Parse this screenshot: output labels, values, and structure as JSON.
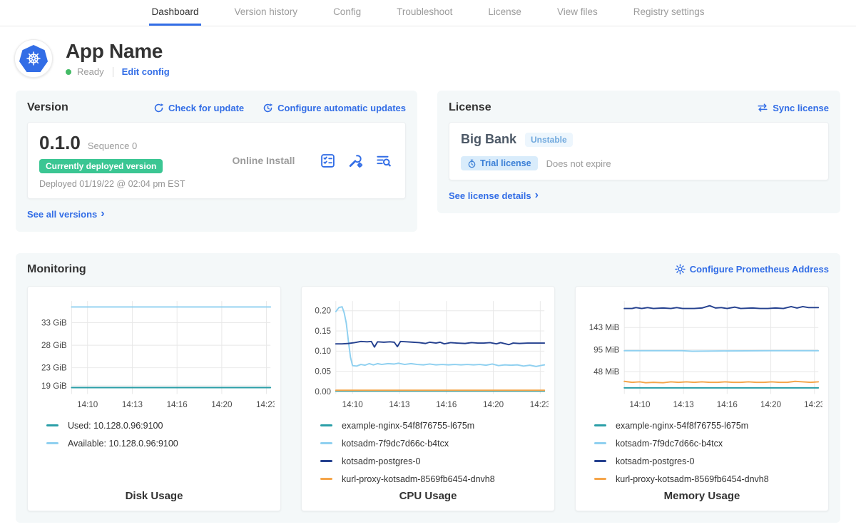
{
  "nav": {
    "tabs": [
      {
        "label": "Dashboard",
        "active": true
      },
      {
        "label": "Version history",
        "active": false
      },
      {
        "label": "Config",
        "active": false
      },
      {
        "label": "Troubleshoot",
        "active": false
      },
      {
        "label": "License",
        "active": false
      },
      {
        "label": "View files",
        "active": false
      },
      {
        "label": "Registry settings",
        "active": false
      }
    ]
  },
  "header": {
    "app_name": "App Name",
    "status": "Ready",
    "edit_config": "Edit config"
  },
  "version_card": {
    "title": "Version",
    "check_update": "Check for update",
    "configure_updates": "Configure automatic updates",
    "version": "0.1.0",
    "sequence": "Sequence 0",
    "deployed_badge": "Currently deployed version",
    "deployed_at": "Deployed 01/19/22 @ 02:04 pm EST",
    "install_type": "Online Install",
    "see_all": "See all versions"
  },
  "license_card": {
    "title": "License",
    "sync": "Sync license",
    "name": "Big Bank",
    "channel": "Unstable",
    "trial": "Trial license",
    "expiry": "Does not expire",
    "see_details": "See license details"
  },
  "monitoring": {
    "title": "Monitoring",
    "configure": "Configure Prometheus Address"
  },
  "icons": {
    "chevron": "›"
  },
  "colors": {
    "accent_blue": "#326de6",
    "deployed_badge_green": "#3bc693",
    "status_ready_green": "#44bb66",
    "series_teal": "#2b9fa8",
    "series_light_blue": "#8fd0f0",
    "series_navy": "#25418f",
    "series_orange": "#f5a54a"
  },
  "chart_data": [
    {
      "type": "line",
      "title": "Disk Usage",
      "x_ticks": [
        "14:10",
        "14:13",
        "14:16",
        "14:20",
        "14:23"
      ],
      "y_ticks": [
        {
          "value": 19,
          "label": "19 GiB"
        },
        {
          "value": 23,
          "label": "23 GiB"
        },
        {
          "value": 28,
          "label": "28 GiB"
        },
        {
          "value": 33,
          "label": "33 GiB"
        }
      ],
      "ylim": [
        17.2,
        37.8
      ],
      "grid": true,
      "legend_position": "below",
      "series": [
        {
          "name": "Used: 10.128.0.96:9100",
          "color": "#2b9fa8",
          "points": [
            [
              0,
              18.6
            ],
            [
              1,
              18.6
            ]
          ]
        },
        {
          "name": "Available: 10.128.0.96:9100",
          "color": "#8fd0f0",
          "points": [
            [
              0,
              36.5
            ],
            [
              1,
              36.5
            ]
          ]
        }
      ]
    },
    {
      "type": "line",
      "title": "CPU Usage",
      "x_ticks": [
        "14:10",
        "14:13",
        "14:16",
        "14:20",
        "14:23"
      ],
      "y_ticks": [
        {
          "value": 0,
          "label": "0.00"
        },
        {
          "value": 0.05,
          "label": "0.05"
        },
        {
          "value": 0.1,
          "label": "0.10"
        },
        {
          "value": 0.15,
          "label": "0.15"
        },
        {
          "value": 0.2,
          "label": "0.20"
        }
      ],
      "ylim": [
        -0.006,
        0.224
      ],
      "grid": true,
      "legend_position": "below",
      "series": [
        {
          "name": "example-nginx-54f8f76755-l675m",
          "color": "#2b9fa8",
          "points": [
            [
              0,
              0.001
            ],
            [
              1,
              0.001
            ]
          ]
        },
        {
          "name": "kotsadm-7f9dc7d66c-b4tcx",
          "color": "#8fd0f0",
          "points": [
            [
              0,
              0.198
            ],
            [
              0.015,
              0.208
            ],
            [
              0.03,
              0.21
            ],
            [
              0.04,
              0.195
            ],
            [
              0.05,
              0.17
            ],
            [
              0.06,
              0.125
            ],
            [
              0.07,
              0.085
            ],
            [
              0.08,
              0.064
            ],
            [
              0.1,
              0.063
            ],
            [
              0.12,
              0.067
            ],
            [
              0.14,
              0.065
            ],
            [
              0.16,
              0.069
            ],
            [
              0.18,
              0.066
            ],
            [
              0.2,
              0.069
            ],
            [
              0.22,
              0.067
            ],
            [
              0.25,
              0.069
            ],
            [
              0.28,
              0.068
            ],
            [
              0.3,
              0.07
            ],
            [
              0.33,
              0.067
            ],
            [
              0.36,
              0.069
            ],
            [
              0.39,
              0.067
            ],
            [
              0.42,
              0.066
            ],
            [
              0.45,
              0.068
            ],
            [
              0.48,
              0.066
            ],
            [
              0.51,
              0.067
            ],
            [
              0.54,
              0.066
            ],
            [
              0.57,
              0.067
            ],
            [
              0.6,
              0.066
            ],
            [
              0.63,
              0.067
            ],
            [
              0.66,
              0.066
            ],
            [
              0.69,
              0.067
            ],
            [
              0.72,
              0.065
            ],
            [
              0.75,
              0.068
            ],
            [
              0.78,
              0.064
            ],
            [
              0.81,
              0.066
            ],
            [
              0.84,
              0.065
            ],
            [
              0.87,
              0.066
            ],
            [
              0.9,
              0.063
            ],
            [
              0.93,
              0.065
            ],
            [
              0.96,
              0.062
            ],
            [
              0.98,
              0.064
            ],
            [
              1,
              0.066
            ]
          ]
        },
        {
          "name": "kotsadm-postgres-0",
          "color": "#25418f",
          "points": [
            [
              0,
              0.118
            ],
            [
              0.03,
              0.118
            ],
            [
              0.06,
              0.119
            ],
            [
              0.09,
              0.121
            ],
            [
              0.12,
              0.124
            ],
            [
              0.15,
              0.123
            ],
            [
              0.17,
              0.124
            ],
            [
              0.185,
              0.11
            ],
            [
              0.2,
              0.123
            ],
            [
              0.23,
              0.122
            ],
            [
              0.26,
              0.123
            ],
            [
              0.28,
              0.122
            ],
            [
              0.295,
              0.111
            ],
            [
              0.31,
              0.124
            ],
            [
              0.34,
              0.123
            ],
            [
              0.37,
              0.122
            ],
            [
              0.4,
              0.121
            ],
            [
              0.43,
              0.119
            ],
            [
              0.45,
              0.122
            ],
            [
              0.48,
              0.12
            ],
            [
              0.5,
              0.122
            ],
            [
              0.52,
              0.118
            ],
            [
              0.55,
              0.121
            ],
            [
              0.58,
              0.12
            ],
            [
              0.62,
              0.119
            ],
            [
              0.65,
              0.121
            ],
            [
              0.68,
              0.12
            ],
            [
              0.71,
              0.12
            ],
            [
              0.74,
              0.121
            ],
            [
              0.77,
              0.118
            ],
            [
              0.79,
              0.121
            ],
            [
              0.83,
              0.116
            ],
            [
              0.85,
              0.12
            ],
            [
              0.88,
              0.119
            ],
            [
              0.92,
              0.12
            ],
            [
              0.96,
              0.12
            ],
            [
              1,
              0.12
            ]
          ]
        },
        {
          "name": "kurl-proxy-kotsadm-8569fb6454-dnvh8",
          "color": "#f5a54a",
          "points": [
            [
              0,
              0.003
            ],
            [
              1,
              0.003
            ]
          ]
        }
      ]
    },
    {
      "type": "line",
      "title": "Memory Usage",
      "x_ticks": [
        "14:10",
        "14:13",
        "14:16",
        "14:20",
        "14:23"
      ],
      "y_ticks": [
        {
          "value": 48,
          "label": "48 MiB"
        },
        {
          "value": 95,
          "label": "95 MiB"
        },
        {
          "value": 143,
          "label": "143 MiB"
        }
      ],
      "ylim": [
        0,
        200
      ],
      "grid": true,
      "legend_position": "below",
      "series": [
        {
          "name": "example-nginx-54f8f76755-l675m",
          "color": "#2b9fa8",
          "points": [
            [
              0,
              13
            ],
            [
              1,
              13
            ]
          ]
        },
        {
          "name": "kotsadm-7f9dc7d66c-b4tcx",
          "color": "#8fd0f0",
          "points": [
            [
              0,
              93
            ],
            [
              0.3,
              93
            ],
            [
              0.35,
              92
            ],
            [
              0.5,
              92.5
            ],
            [
              0.75,
              93
            ],
            [
              1,
              93
            ]
          ]
        },
        {
          "name": "kotsadm-postgres-0",
          "color": "#25418f",
          "points": [
            [
              0,
              184
            ],
            [
              0.04,
              184
            ],
            [
              0.06,
              186
            ],
            [
              0.09,
              184
            ],
            [
              0.12,
              186
            ],
            [
              0.15,
              184
            ],
            [
              0.2,
              185
            ],
            [
              0.24,
              184
            ],
            [
              0.27,
              186
            ],
            [
              0.3,
              184
            ],
            [
              0.36,
              184
            ],
            [
              0.4,
              185
            ],
            [
              0.44,
              190
            ],
            [
              0.47,
              185
            ],
            [
              0.5,
              186
            ],
            [
              0.53,
              184
            ],
            [
              0.57,
              187
            ],
            [
              0.6,
              184
            ],
            [
              0.66,
              185
            ],
            [
              0.7,
              184
            ],
            [
              0.74,
              184
            ],
            [
              0.78,
              185
            ],
            [
              0.82,
              184
            ],
            [
              0.86,
              188
            ],
            [
              0.89,
              185
            ],
            [
              0.92,
              188
            ],
            [
              0.95,
              186
            ],
            [
              1,
              186
            ]
          ]
        },
        {
          "name": "kurl-proxy-kotsadm-8569fb6454-dnvh8",
          "color": "#f5a54a",
          "points": [
            [
              0,
              27
            ],
            [
              0.04,
              25
            ],
            [
              0.08,
              26
            ],
            [
              0.11,
              24
            ],
            [
              0.15,
              25
            ],
            [
              0.2,
              24
            ],
            [
              0.24,
              26
            ],
            [
              0.28,
              25
            ],
            [
              0.32,
              26
            ],
            [
              0.36,
              25
            ],
            [
              0.4,
              26
            ],
            [
              0.44,
              25
            ],
            [
              0.48,
              25
            ],
            [
              0.52,
              26
            ],
            [
              0.56,
              25
            ],
            [
              0.6,
              25
            ],
            [
              0.64,
              26
            ],
            [
              0.68,
              25
            ],
            [
              0.72,
              25
            ],
            [
              0.76,
              26
            ],
            [
              0.8,
              25
            ],
            [
              0.84,
              25
            ],
            [
              0.88,
              27
            ],
            [
              0.92,
              26
            ],
            [
              0.96,
              25
            ],
            [
              1,
              26
            ]
          ]
        }
      ]
    }
  ]
}
